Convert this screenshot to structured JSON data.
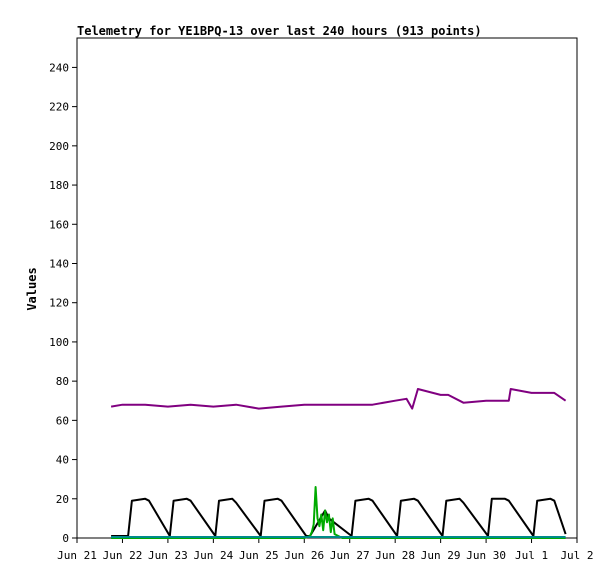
{
  "chart_data": {
    "type": "line",
    "title": "Telemetry for YE1BPQ-13 over last 240 hours (913 points)",
    "xlabel": "",
    "ylabel": "Values",
    "xlim": [
      "2023-06-21",
      "2023-07-02"
    ],
    "ylim": [
      0,
      255
    ],
    "x_ticks": [
      "2023-06-21",
      "2023-06-22",
      "2023-06-23",
      "2023-06-24",
      "2023-06-25",
      "2023-06-26",
      "2023-06-27",
      "2023-06-28",
      "2023-06-29",
      "2023-06-30",
      "2023-07-01",
      "2023-07-02"
    ],
    "x_tick_labels": [
      "Jun 21",
      "Jun 22",
      "Jun 23",
      "Jun 24",
      "Jun 25",
      "Jun 26",
      "Jun 27",
      "Jun 28",
      "Jun 29",
      "Jun 30",
      "Jul 1",
      "Jul 2"
    ],
    "y_ticks": [
      0,
      20,
      40,
      60,
      80,
      100,
      120,
      140,
      160,
      180,
      200,
      220,
      240
    ],
    "y_tick_labels": [
      "0",
      "20",
      "40",
      "60",
      "80",
      "100",
      "120",
      "140",
      "160",
      "180",
      "200",
      "220",
      "240"
    ],
    "grid": false,
    "legend": "none",
    "series": [
      {
        "color": "#800080",
        "x": [
          "2023-06-21 18:00",
          "2023-06-22 00:00",
          "2023-06-22 12:00",
          "2023-06-23 00:00",
          "2023-06-23 12:00",
          "2023-06-24 00:00",
          "2023-06-24 12:00",
          "2023-06-25 00:00",
          "2023-06-25 12:00",
          "2023-06-26 00:00",
          "2023-06-26 12:00",
          "2023-06-27 00:00",
          "2023-06-27 12:00",
          "2023-06-28 00:00",
          "2023-06-28 06:00",
          "2023-06-28 09:00",
          "2023-06-28 12:00",
          "2023-06-29 00:00",
          "2023-06-29 04:00",
          "2023-06-29 12:00",
          "2023-06-30 00:00",
          "2023-06-30 12:00",
          "2023-06-30 13:00",
          "2023-07-01 00:00",
          "2023-07-01 12:00",
          "2023-07-01 18:00"
        ],
        "values": [
          67,
          68,
          68,
          67,
          68,
          67,
          68,
          66,
          67,
          68,
          68,
          68,
          68,
          70,
          71,
          66,
          76,
          73,
          73,
          69,
          70,
          70,
          76,
          74,
          74,
          70
        ]
      },
      {
        "color": "#000000",
        "x": [
          "2023-06-21 18:00",
          "2023-06-22 03:00",
          "2023-06-22 05:00",
          "2023-06-22 12:00",
          "2023-06-22 14:00",
          "2023-06-23 01:00",
          "2023-06-23 03:00",
          "2023-06-23 10:00",
          "2023-06-23 12:00",
          "2023-06-24 01:00",
          "2023-06-24 03:00",
          "2023-06-24 10:00",
          "2023-06-24 12:00",
          "2023-06-25 01:00",
          "2023-06-25 03:00",
          "2023-06-25 10:00",
          "2023-06-25 12:00",
          "2023-06-26 01:00",
          "2023-06-26 03:00",
          "2023-06-26 11:00",
          "2023-06-26 13:00",
          "2023-06-27 01:00",
          "2023-06-27 03:00",
          "2023-06-27 10:00",
          "2023-06-27 12:00",
          "2023-06-28 01:00",
          "2023-06-28 03:00",
          "2023-06-28 10:00",
          "2023-06-28 12:00",
          "2023-06-29 01:00",
          "2023-06-29 03:00",
          "2023-06-29 10:00",
          "2023-06-29 12:00",
          "2023-06-30 01:00",
          "2023-06-30 03:00",
          "2023-06-30 10:00",
          "2023-06-30 12:00",
          "2023-07-01 01:00",
          "2023-07-01 03:00",
          "2023-07-01 10:00",
          "2023-07-01 12:00",
          "2023-07-01 18:00"
        ],
        "values": [
          1,
          1,
          19,
          20,
          19,
          1,
          19,
          20,
          19,
          1,
          19,
          20,
          18,
          1,
          19,
          20,
          19,
          1,
          1,
          14,
          10,
          1,
          19,
          20,
          19,
          1,
          19,
          20,
          19,
          1,
          19,
          20,
          18,
          1,
          20,
          20,
          19,
          1,
          19,
          20,
          19,
          2
        ]
      },
      {
        "color": "#00aa00",
        "x": [
          "2023-06-21 18:00",
          "2023-06-25 18:00",
          "2023-06-26 00:00",
          "2023-06-26 03:00",
          "2023-06-26 04:00",
          "2023-06-26 05:00",
          "2023-06-26 06:00",
          "2023-06-26 07:00",
          "2023-06-26 08:00",
          "2023-06-26 09:00",
          "2023-06-26 10:00",
          "2023-06-26 11:00",
          "2023-06-26 12:00",
          "2023-06-26 13:00",
          "2023-06-26 14:00",
          "2023-06-26 15:00",
          "2023-06-26 16:00",
          "2023-06-26 20:00",
          "2023-07-01 18:00"
        ],
        "values": [
          0,
          0,
          0,
          1,
          3,
          7,
          26,
          10,
          6,
          12,
          4,
          14,
          8,
          12,
          3,
          10,
          2,
          0,
          0
        ]
      },
      {
        "color": "#008b8b",
        "x": [
          "2023-06-21 18:00",
          "2023-07-01 18:00"
        ],
        "values": [
          0.5,
          0.5
        ]
      }
    ]
  }
}
